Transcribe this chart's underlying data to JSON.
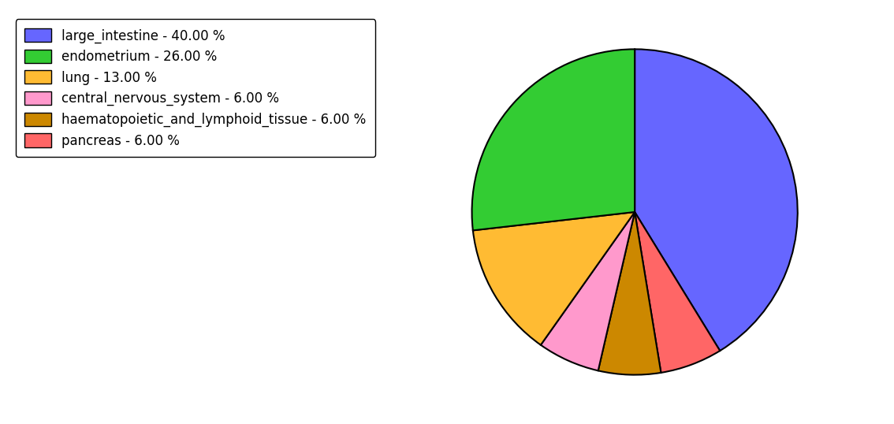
{
  "labels": [
    "large_intestine - 40.00 %",
    "endometrium - 26.00 %",
    "lung - 13.00 %",
    "central_nervous_system - 6.00 %",
    "haematopoietic_and_lymphoid_tissue - 6.00 %",
    "pancreas - 6.00 %"
  ],
  "sizes_ordered": [
    40,
    6,
    6,
    6,
    13,
    26
  ],
  "colors_ordered": [
    "#6666ff",
    "#ff6666",
    "#cc8800",
    "#ff99cc",
    "#ffbb33",
    "#33cc33"
  ],
  "legend_colors": [
    "#6666ff",
    "#33cc33",
    "#ffbb33",
    "#ff99cc",
    "#cc8800",
    "#ff6666"
  ],
  "startangle": 90,
  "figsize": [
    11.34,
    5.38
  ],
  "dpi": 100,
  "legend_fontsize": 12
}
